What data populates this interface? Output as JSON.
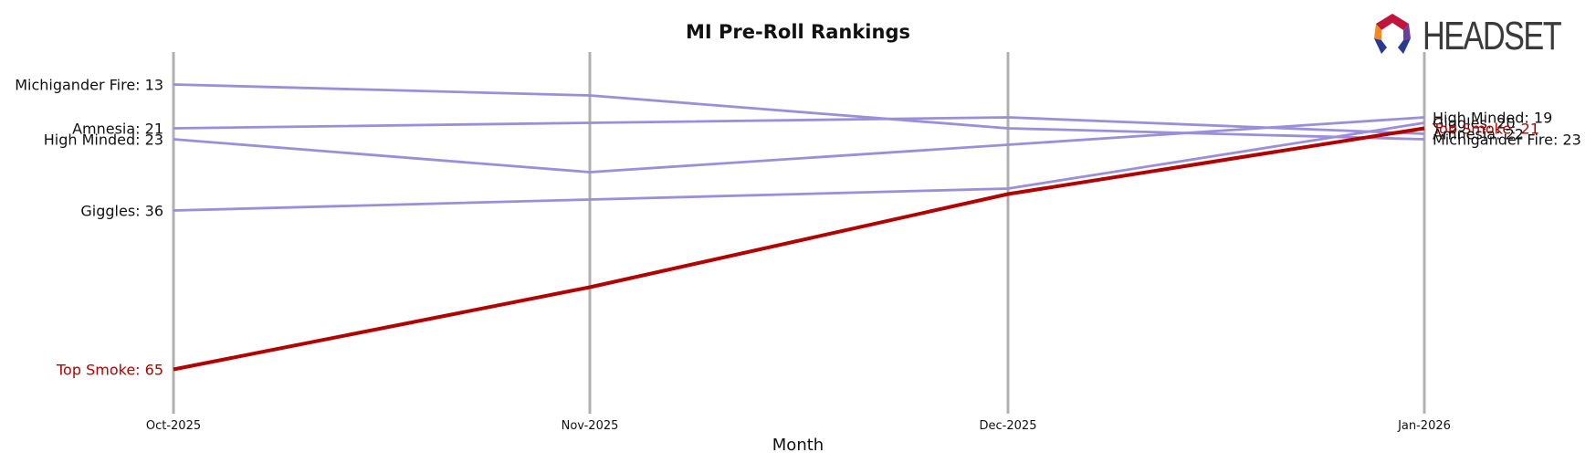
{
  "chart_data": {
    "type": "line",
    "title": "MI Pre-Roll Rankings",
    "xlabel": "Month",
    "ylabel": "",
    "categories": [
      "Oct-2025",
      "Nov-2025",
      "Dec-2025",
      "Jan-2026"
    ],
    "y_inverted": true,
    "ylim": [
      68,
      8
    ],
    "grid": "vertical lines at each month",
    "series": [
      {
        "name": "Michigander Fire",
        "values": [
          13,
          15,
          21,
          23
        ],
        "color": "#9b8fdb",
        "highlight": false
      },
      {
        "name": "Amnesia",
        "values": [
          21,
          20,
          19,
          22
        ],
        "color": "#9b8fdb",
        "highlight": false
      },
      {
        "name": "High Minded",
        "values": [
          23,
          29,
          24,
          19
        ],
        "color": "#9b8fdb",
        "highlight": false
      },
      {
        "name": "Giggles",
        "values": [
          36,
          34,
          32,
          20
        ],
        "color": "#9b8fdb",
        "highlight": false
      },
      {
        "name": "Top Smoke",
        "values": [
          65,
          50,
          33,
          21
        ],
        "color": "#b30000",
        "highlight": true
      }
    ],
    "start_labels": [
      "Michigander Fire: 13",
      "Amnesia: 21",
      "High Minded: 23",
      "Giggles: 36",
      "Top Smoke: 65"
    ],
    "end_labels": [
      "High Minded: 19",
      "Giggles: 20",
      "Top Smoke: 21",
      "Amnesia: 22",
      "Michigander Fire: 23"
    ]
  },
  "brand": {
    "name": "HEADSET",
    "colors": {
      "dark": "#3a3a3a",
      "red": "#c0143c",
      "orange": "#f08a24",
      "purple": "#6a3fa0",
      "blue": "#2b3990"
    }
  }
}
